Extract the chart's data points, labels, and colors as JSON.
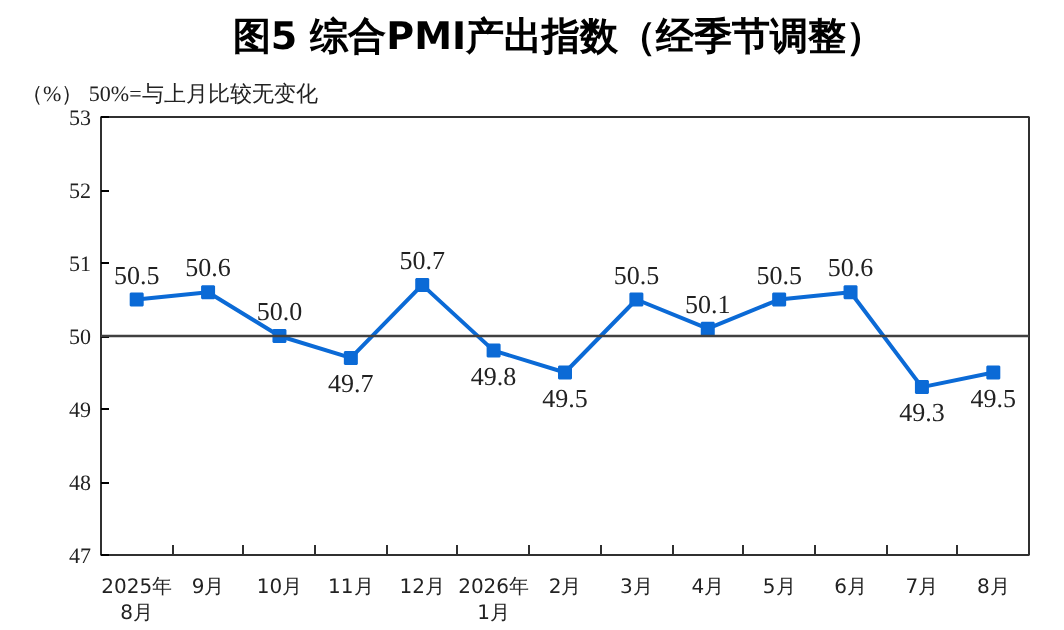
{
  "chart_data": {
    "type": "line",
    "title": "图5  综合PMI产出指数（经季节调整）",
    "annotations": [
      "（%） 50%=与上月比较无变化"
    ],
    "categories": [
      "2025年\n8月",
      "9月",
      "10月",
      "11月",
      "12月",
      "2026年\n1月",
      "2月",
      "3月",
      "4月",
      "5月",
      "6月",
      "7月",
      "8月"
    ],
    "series": [
      {
        "color": "#0b6ad6",
        "values": [
          50.5,
          50.6,
          50.0,
          49.7,
          50.7,
          49.8,
          49.5,
          50.5,
          50.1,
          50.5,
          50.6,
          49.3,
          49.5
        ],
        "value_labels": [
          "50.5",
          "50.6",
          "50.0",
          "49.7",
          "50.7",
          "49.8",
          "49.5",
          "50.5",
          "50.1",
          "50.5",
          "50.6",
          "49.3",
          "49.5"
        ]
      }
    ],
    "ylim": [
      47,
      53
    ],
    "yticks": [
      47,
      48,
      49,
      50,
      51,
      52,
      53
    ],
    "ref_lines": [
      {
        "axis": "y",
        "value": 50,
        "color": "#404040"
      }
    ],
    "grid": false,
    "marker": "square",
    "line_style": "solid"
  }
}
